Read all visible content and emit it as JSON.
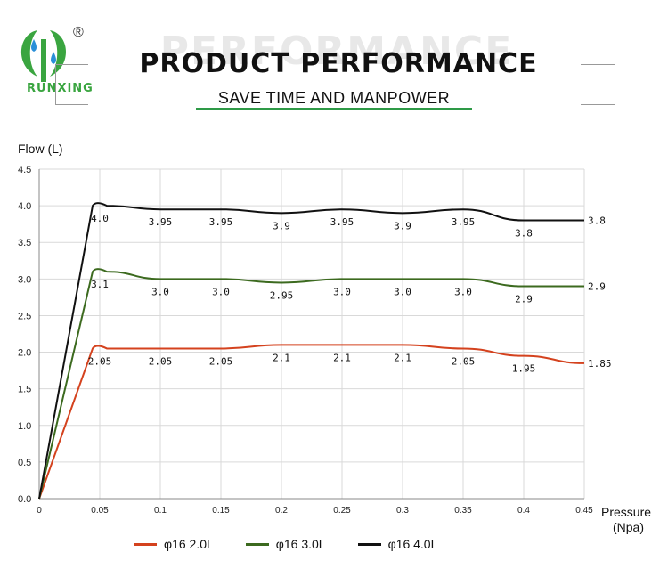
{
  "brand": {
    "name": "RUNXING",
    "registered": "®"
  },
  "header": {
    "watermark": "PERFORMANCE",
    "title": "PRODUCT PERFORMANCE",
    "subtitle": "SAVE TIME AND MANPOWER"
  },
  "colors": {
    "accent": "#2e9a47",
    "red": "#d4421e",
    "green": "#3c6a1f",
    "black": "#111111",
    "grid": "#d9d9d9"
  },
  "chart_data": {
    "type": "line",
    "title": "PRODUCT PERFORMANCE",
    "ylabel": "Flow (L)",
    "xlabel": "Pressure (Npa)",
    "xlabel_line1": "Pressure",
    "xlabel_line2": "(Npa)",
    "xlim": [
      0,
      0.45
    ],
    "ylim": [
      0,
      4.5
    ],
    "x_ticks": [
      "0",
      "0.05",
      "0.1",
      "0.15",
      "0.2",
      "0.25",
      "0.3",
      "0.35",
      "0.4",
      "0.45"
    ],
    "y_ticks": [
      "0.0",
      "0.5",
      "1.0",
      "1.5",
      "2.0",
      "2.5",
      "3.0",
      "3.5",
      "4.0",
      "4.5"
    ],
    "grid": true,
    "x": [
      0.05,
      0.1,
      0.15,
      0.2,
      0.25,
      0.3,
      0.35,
      0.4,
      0.45
    ],
    "series": [
      {
        "name": "φ16  2.0L",
        "color": "#d4421e",
        "values": [
          2.05,
          2.05,
          2.05,
          2.1,
          2.1,
          2.1,
          2.05,
          1.95,
          1.85
        ],
        "labels": [
          "2.05",
          "2.05",
          "2.05",
          "2.1",
          "2.1",
          "2.1",
          "2.05",
          "1.95",
          "1.85"
        ]
      },
      {
        "name": "φ16  3.0L",
        "color": "#3c6a1f",
        "values": [
          3.1,
          3.0,
          3.0,
          2.95,
          3.0,
          3.0,
          3.0,
          2.9,
          2.9
        ],
        "labels": [
          "3.1",
          "3.0",
          "3.0",
          "2.95",
          "3.0",
          "3.0",
          "3.0",
          "2.9",
          "2.9"
        ]
      },
      {
        "name": "φ16  4.0L",
        "color": "#111111",
        "values": [
          4.0,
          3.95,
          3.95,
          3.9,
          3.95,
          3.9,
          3.95,
          3.8,
          3.8
        ],
        "labels": [
          "4.0",
          "3.95",
          "3.95",
          "3.9",
          "3.95",
          "3.9",
          "3.95",
          "3.8",
          "3.8"
        ]
      }
    ],
    "legend_position": "bottom"
  }
}
